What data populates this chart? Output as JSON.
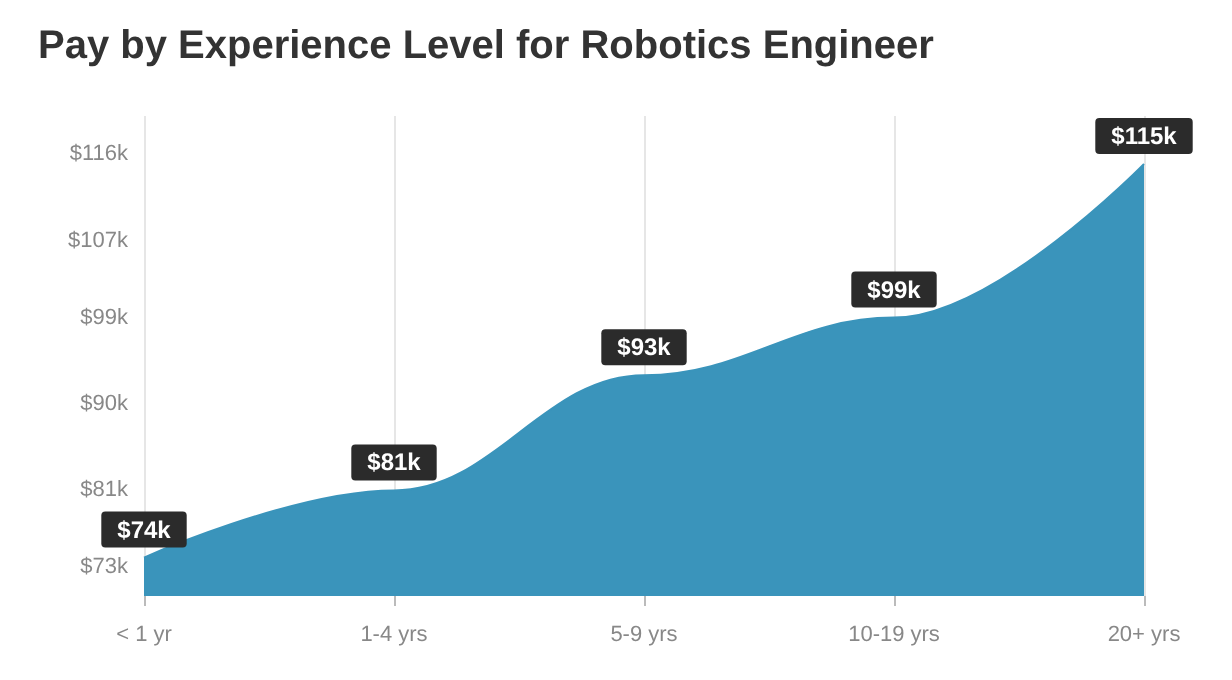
{
  "chart_data": {
    "type": "area",
    "title": "Pay by Experience Level for Robotics Engineer",
    "categories": [
      "< 1 yr",
      "1-4 yrs",
      "5-9 yrs",
      "10-19 yrs",
      "20+ yrs"
    ],
    "series": [
      {
        "color": "#3a94bb",
        "values": [
          74,
          81,
          93,
          99,
          115
        ],
        "value_labels": [
          "$74k",
          "$81k",
          "$93k",
          "$99k",
          "$115k"
        ]
      }
    ],
    "ylim": [
      70,
      120
    ],
    "yticks": [
      {
        "value": 73,
        "label": "$73k"
      },
      {
        "value": 81,
        "label": "$81k"
      },
      {
        "value": 90,
        "label": "$90k"
      },
      {
        "value": 99,
        "label": "$99k"
      },
      {
        "value": 107,
        "label": "$107k"
      },
      {
        "value": 116,
        "label": "$116k"
      }
    ],
    "grid": "x",
    "marker": "none"
  }
}
